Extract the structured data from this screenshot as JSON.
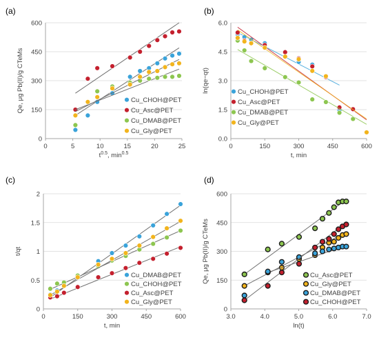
{
  "colors": {
    "blue": "#3aa3da",
    "red": "#c4202e",
    "green": "#8dc650",
    "orange": "#f2b41d",
    "fit": "#707070"
  },
  "chart_data": [
    {
      "type": "scatter",
      "panel": "(a)",
      "xlabel": "t^0.5, min^0.5",
      "ylabel": "Qe, μg Pb(II)/g CTeMs",
      "xlim": [
        0,
        25
      ],
      "ylim": [
        0,
        600
      ],
      "xticks": [
        "0",
        "5",
        "10",
        "15",
        "20",
        "25"
      ],
      "yticks": [
        "0",
        "150",
        "300",
        "450",
        "600"
      ],
      "grid": "horizontal",
      "legend_position": "right",
      "series": [
        {
          "name": "Cu_CHOH@PET",
          "color": "blue",
          "x": [
            5.48,
            7.75,
            9.49,
            12.25,
            15.49,
            17.32,
            18.97,
            20.49,
            21.91,
            23.24,
            24.49
          ],
          "y": [
            45,
            120,
            190,
            235,
            320,
            350,
            365,
            390,
            415,
            430,
            440
          ],
          "fit": {
            "x": [
              5.48,
              24.49
            ],
            "y": [
              120,
              470
            ]
          }
        },
        {
          "name": "Cu_Asc@PET",
          "color": "red",
          "x": [
            5.48,
            7.75,
            9.49,
            12.25,
            15.49,
            17.32,
            18.97,
            20.49,
            21.91,
            23.24,
            24.49
          ],
          "y": [
            150,
            310,
            365,
            375,
            420,
            450,
            480,
            510,
            530,
            550,
            555
          ],
          "fit": {
            "x": [
              5.48,
              24.49
            ],
            "y": [
              235,
              600
            ]
          }
        },
        {
          "name": "Cu_DMAB@PET",
          "color": "green",
          "x": [
            5.48,
            7.75,
            9.49,
            12.25,
            15.49,
            17.32,
            18.97,
            20.49,
            21.91,
            23.24,
            24.49
          ],
          "y": [
            70,
            190,
            245,
            270,
            290,
            300,
            310,
            315,
            320,
            320,
            325
          ],
          "fit": {
            "x": [
              5.48,
              24.49
            ],
            "y": [
              150,
              360
            ]
          }
        },
        {
          "name": "Cu_Gly@PET",
          "color": "orange",
          "x": [
            5.48,
            7.75,
            9.49,
            12.25,
            15.49,
            17.32,
            18.97,
            20.49,
            21.91,
            23.24,
            24.49
          ],
          "y": [
            120,
            190,
            215,
            260,
            280,
            320,
            345,
            350,
            370,
            385,
            390
          ],
          "fit": {
            "x": [
              5.48,
              24.49
            ],
            "y": [
              140,
              410
            ]
          }
        }
      ]
    },
    {
      "type": "scatter",
      "panel": "(b)",
      "xlabel": "t, min",
      "ylabel": "ln(qe−qt)",
      "xlim": [
        0,
        600
      ],
      "ylim": [
        0,
        6.5
      ],
      "xticks": [
        "0",
        "150",
        "300",
        "450",
        "600"
      ],
      "yticks": [
        "0.0",
        "1.5",
        "3.0",
        "4.5",
        "6.0"
      ],
      "grid": "horizontal",
      "legend_position": "bottom-left",
      "series": [
        {
          "name": "Cu_CHOH@PET",
          "color": "blue",
          "x": [
            30,
            60,
            90,
            150,
            240,
            300,
            360,
            420,
            480
          ],
          "y": [
            5.85,
            5.7,
            5.55,
            5.35,
            4.85,
            4.3,
            4.15,
            3.5,
            1.6
          ],
          "fit": {
            "x": [
              30,
              480
            ],
            "y": [
              5.95,
              3.0
            ]
          }
        },
        {
          "name": "Cu_Asc@PET",
          "color": "red",
          "x": [
            30,
            60,
            90,
            150,
            240,
            300,
            360,
            420,
            480,
            540
          ],
          "y": [
            5.95,
            5.5,
            5.35,
            5.25,
            4.85,
            4.5,
            4.05,
            3.45,
            1.75,
            1.65
          ],
          "fit": {
            "x": [
              30,
              600
            ],
            "y": [
              6.25,
              1.05
            ]
          }
        },
        {
          "name": "Cu_DMAB@PET",
          "color": "green",
          "x": [
            30,
            60,
            90,
            150,
            240,
            300,
            360,
            420,
            480,
            540
          ],
          "y": [
            5.5,
            4.95,
            4.35,
            3.95,
            3.45,
            3.15,
            2.2,
            2.05,
            1.45,
            1.1
          ],
          "fit": {
            "x": [
              30,
              600
            ],
            "y": [
              5.0,
              0.8
            ]
          }
        },
        {
          "name": "Cu_Gly@PET",
          "color": "orange",
          "x": [
            30,
            60,
            90,
            150,
            240,
            300,
            360,
            420,
            600
          ],
          "y": [
            5.65,
            5.45,
            5.35,
            5.1,
            4.6,
            4.45,
            3.8,
            3.5,
            0.35
          ],
          "fit": {
            "x": [
              30,
              600
            ],
            "y": [
              6.1,
              1.1
            ]
          }
        }
      ]
    },
    {
      "type": "scatter",
      "panel": "(c)",
      "xlabel": "t, min",
      "ylabel": "t/qt",
      "xlim": [
        0,
        600
      ],
      "ylim": [
        0,
        2
      ],
      "xticks": [
        "0",
        "150",
        "300",
        "450",
        "600"
      ],
      "yticks": [
        "0",
        "0.5",
        "1",
        "1.5",
        "2"
      ],
      "grid": "horizontal",
      "legend_position": "bottom-right",
      "series": [
        {
          "name": "Cu_DMAB@PET",
          "color": "blue",
          "x": [
            30,
            60,
            90,
            150,
            240,
            300,
            360,
            420,
            480,
            540,
            600
          ],
          "y": [
            0.25,
            0.32,
            0.42,
            0.56,
            0.83,
            0.97,
            1.1,
            1.26,
            1.45,
            1.65,
            1.82
          ],
          "fit": {
            "x": [
              30,
              600
            ],
            "y": [
              0.2,
              1.8
            ]
          }
        },
        {
          "name": "Cu_CHOH@PET",
          "color": "green",
          "x": [
            30,
            60,
            90,
            150,
            240,
            300,
            360,
            420,
            480,
            540,
            600
          ],
          "y": [
            0.35,
            0.44,
            0.46,
            0.58,
            0.74,
            0.84,
            0.92,
            1.03,
            1.13,
            1.24,
            1.36
          ],
          "fit": {
            "x": [
              30,
              600
            ],
            "y": [
              0.34,
              1.36
            ]
          }
        },
        {
          "name": "Cu_Asc@PET",
          "color": "red",
          "x": [
            30,
            60,
            90,
            150,
            240,
            300,
            360,
            420,
            480,
            540,
            600
          ],
          "y": [
            0.2,
            0.22,
            0.28,
            0.38,
            0.55,
            0.62,
            0.71,
            0.8,
            0.87,
            0.96,
            1.06
          ],
          "fit": {
            "x": [
              30,
              600
            ],
            "y": [
              0.17,
              1.08
            ]
          }
        },
        {
          "name": "Cu_Gly@PET",
          "color": "orange",
          "x": [
            30,
            60,
            90,
            150,
            240,
            300,
            360,
            420,
            480,
            540,
            600
          ],
          "y": [
            0.24,
            0.3,
            0.4,
            0.55,
            0.77,
            0.87,
            0.97,
            1.1,
            1.25,
            1.4,
            1.53
          ],
          "fit": {
            "x": [
              30,
              600
            ],
            "y": [
              0.24,
              1.52
            ]
          }
        }
      ]
    },
    {
      "type": "scatter",
      "panel": "(d)",
      "xlabel": "ln(t)",
      "ylabel": "Qe, μg Pb(II)/g CTeMs",
      "xlim": [
        3,
        7
      ],
      "ylim": [
        0,
        600
      ],
      "xticks": [
        "3.0",
        "4.0",
        "5.0",
        "6.0",
        "7.0"
      ],
      "yticks": [
        "0",
        "150",
        "300",
        "450",
        "600"
      ],
      "grid": "horizontal",
      "legend_position": "bottom-right",
      "series": [
        {
          "name": "Cu_Asc@PET",
          "color": "green",
          "x": [
            3.4,
            4.09,
            4.5,
            5.01,
            5.48,
            5.7,
            5.89,
            6.04,
            6.17,
            6.29,
            6.4
          ],
          "y": [
            180,
            310,
            340,
            375,
            420,
            470,
            500,
            530,
            555,
            560,
            560
          ],
          "fit": {
            "x": [
              3.4,
              6.4
            ],
            "y": [
              180,
              570
            ]
          }
        },
        {
          "name": "Cu_Gly@PET",
          "color": "orange",
          "x": [
            3.4,
            4.09,
            4.5,
            5.01,
            5.48,
            5.7,
            5.89,
            6.04,
            6.17,
            6.29,
            6.4
          ],
          "y": [
            120,
            190,
            215,
            260,
            280,
            320,
            345,
            350,
            370,
            385,
            390
          ],
          "fit": {
            "x": [
              3.4,
              6.4
            ],
            "y": [
              120,
              400
            ]
          }
        },
        {
          "name": "Cu_DMAB@PET",
          "color": "blue",
          "x": [
            3.4,
            4.09,
            4.5,
            5.01,
            5.48,
            5.7,
            5.89,
            6.04,
            6.17,
            6.29,
            6.4
          ],
          "y": [
            70,
            195,
            245,
            270,
            290,
            300,
            310,
            315,
            320,
            325,
            325
          ],
          "fit": {
            "x": [
              4.09,
              6.4
            ],
            "y": [
              190,
              330
            ]
          }
        },
        {
          "name": "Cu_CHOH@PET",
          "color": "red",
          "x": [
            3.4,
            4.09,
            4.5,
            5.01,
            5.48,
            5.7,
            5.89,
            6.04,
            6.17,
            6.29,
            6.4
          ],
          "y": [
            45,
            120,
            190,
            235,
            320,
            350,
            365,
            390,
            415,
            430,
            440
          ],
          "fit": {
            "x": [
              3.4,
              6.4
            ],
            "y": [
              45,
              450
            ]
          }
        }
      ]
    }
  ]
}
